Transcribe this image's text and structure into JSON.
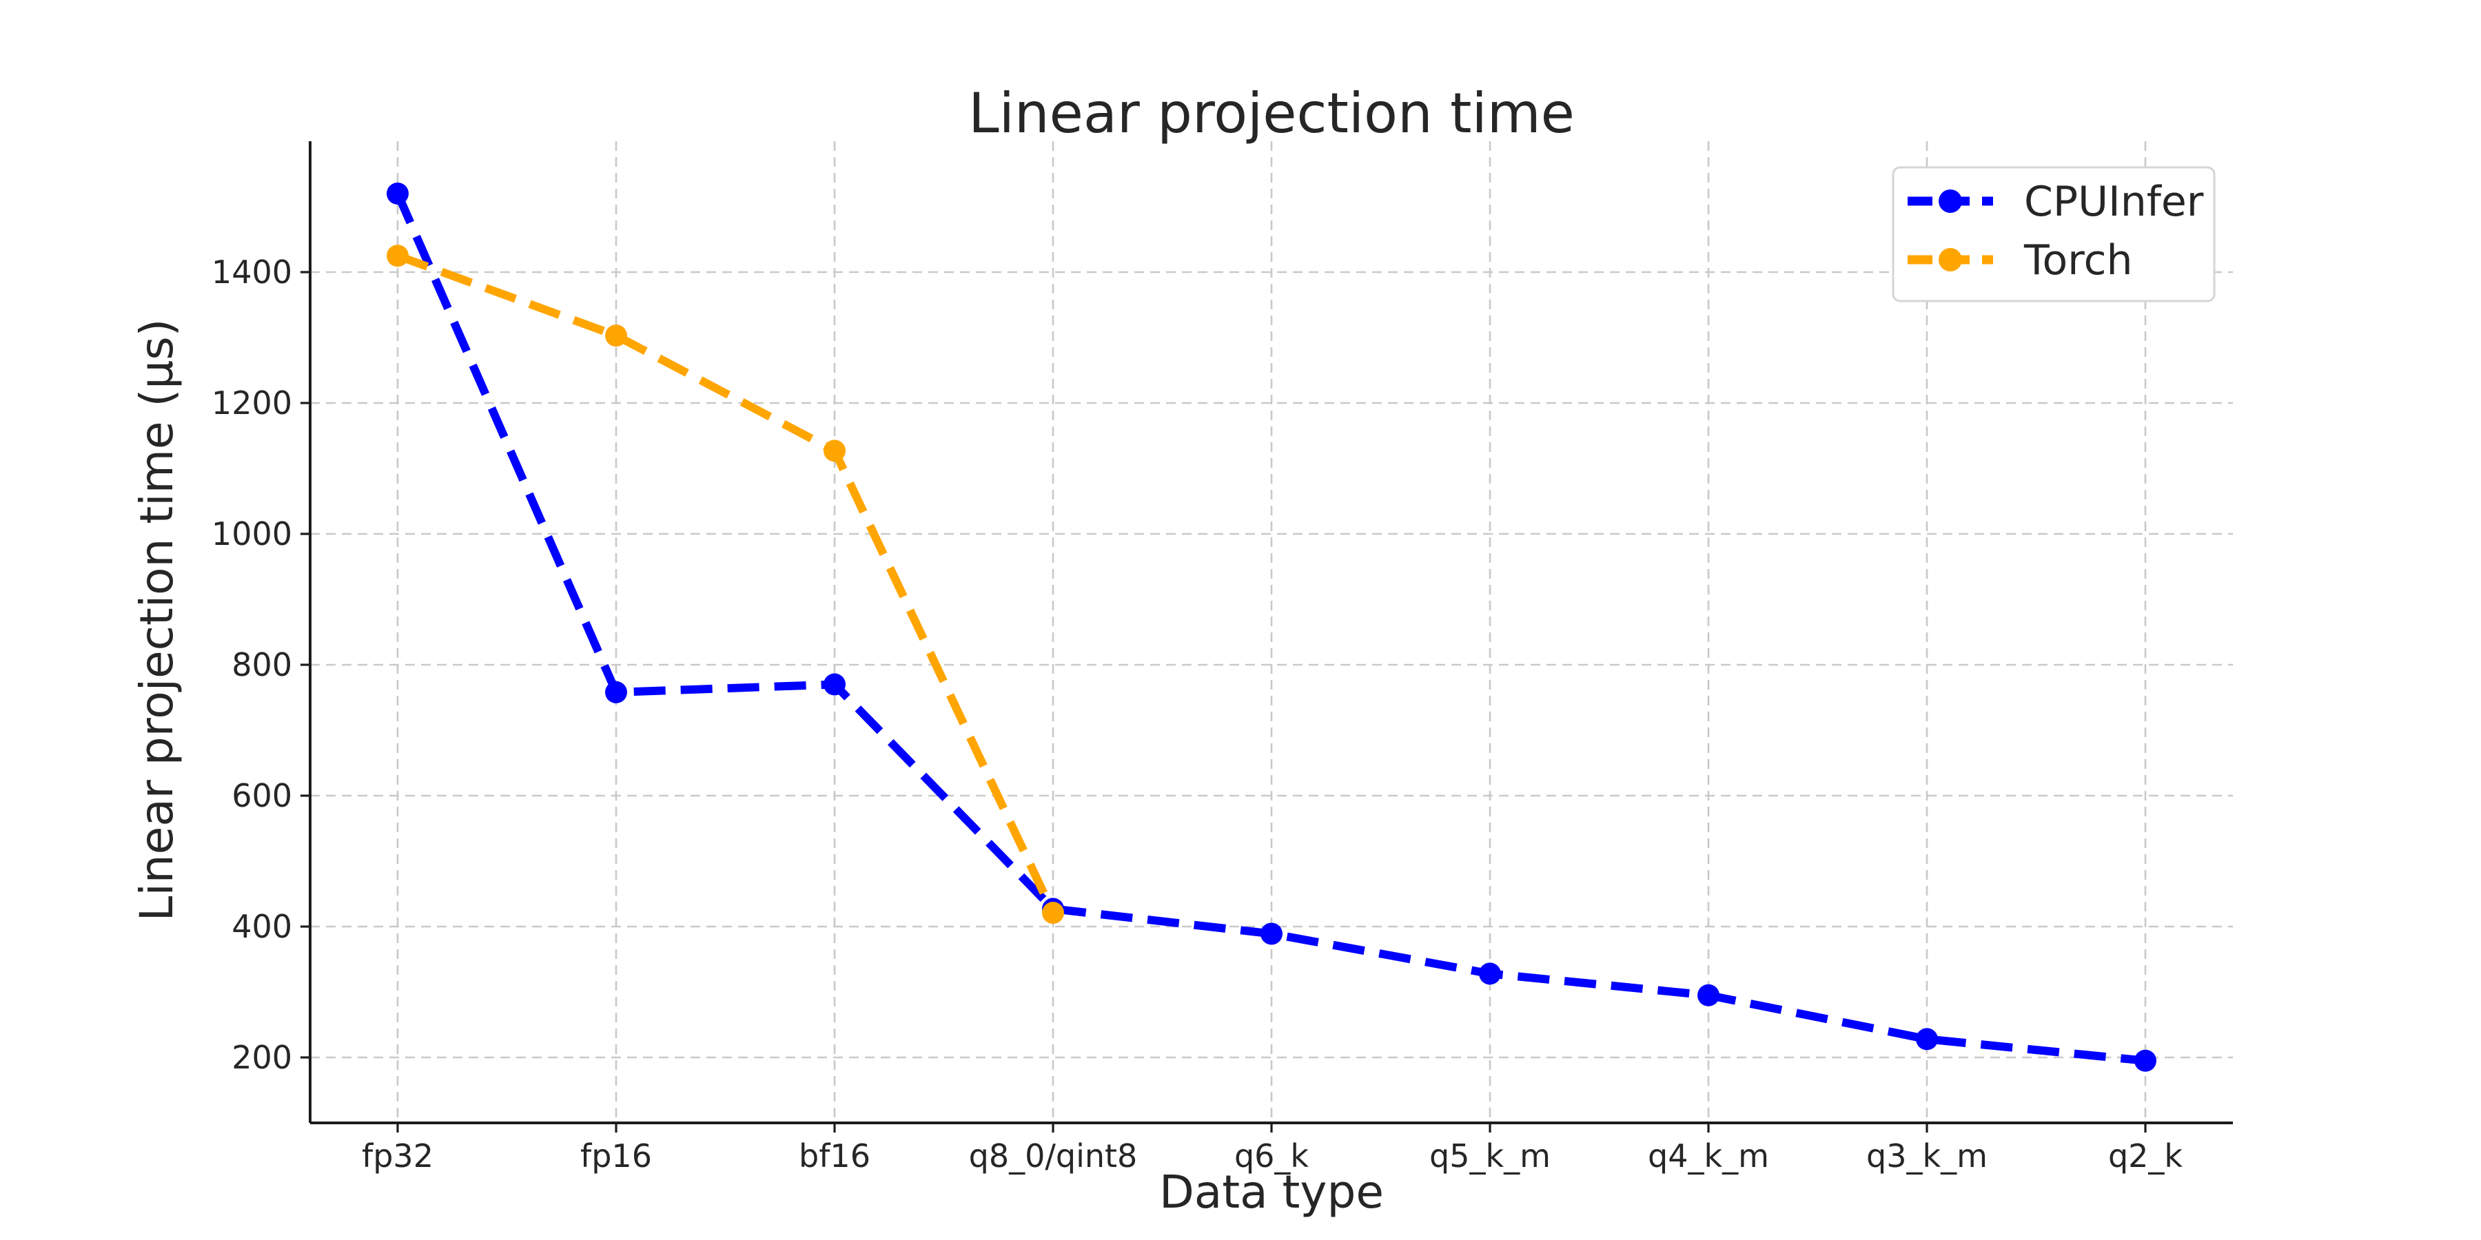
{
  "chart_data": {
    "type": "line",
    "title": "Linear projection time",
    "xlabel": "Data type",
    "ylabel": "Linear projection time (µs)",
    "categories": [
      "fp32",
      "fp16",
      "bf16",
      "q8_0/qint8",
      "q6_k",
      "q5_k_m",
      "q4_k_m",
      "q3_k_m",
      "q2_k"
    ],
    "series": [
      {
        "name": "CPUInfer",
        "color": "#0000ff",
        "line_style": "dashed",
        "marker": "circle",
        "values": [
          1520,
          758,
          770,
          427,
          389,
          328,
          295,
          228,
          195
        ]
      },
      {
        "name": "Torch",
        "color": "#ffa500",
        "line_style": "dashed",
        "marker": "circle",
        "values": [
          1425,
          1303,
          1127,
          421,
          null,
          null,
          null,
          null,
          null
        ]
      }
    ],
    "yticks": [
      200,
      400,
      600,
      800,
      1000,
      1200,
      1400
    ],
    "ylim": [
      100,
      1600
    ],
    "grid": true,
    "legend_position": "upper right"
  },
  "style": {
    "text_color": "#262626",
    "grid_color": "#c9c9c9",
    "spine_color": "#1c1c1c",
    "legend_border_color": "#d5d5d5",
    "background": "#ffffff"
  }
}
